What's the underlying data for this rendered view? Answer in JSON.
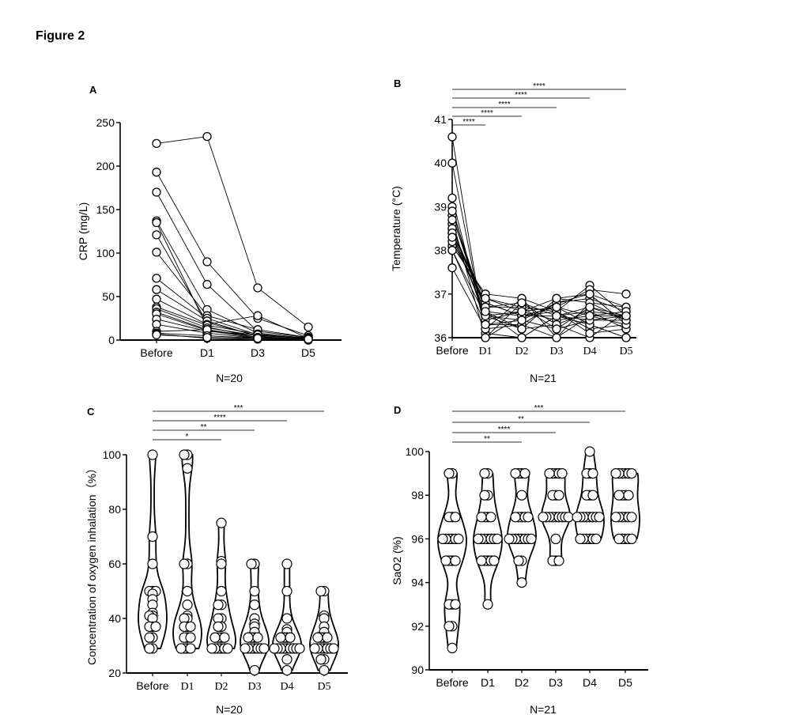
{
  "figure_title": "Figure 2",
  "chart_data": [
    {
      "panel": "A",
      "type": "line",
      "ylabel": "CRP (mg/L)",
      "xlabel": "N=20",
      "categories": [
        "Before",
        "D1",
        "D3",
        "D5"
      ],
      "ylim": [
        0,
        250
      ],
      "yticks": [
        0,
        50,
        100,
        150,
        200,
        250
      ],
      "significance": [],
      "subjects": [
        [
          226,
          234,
          60,
          15
        ],
        [
          193,
          90,
          25,
          5
        ],
        [
          170,
          64,
          10,
          3
        ],
        [
          137,
          35,
          8,
          2
        ],
        [
          135,
          15,
          3,
          1
        ],
        [
          121,
          20,
          5,
          2
        ],
        [
          101,
          28,
          12,
          3
        ],
        [
          71,
          25,
          6,
          2
        ],
        [
          58,
          22,
          4,
          1
        ],
        [
          47,
          18,
          28,
          2
        ],
        [
          38,
          17,
          7,
          1
        ],
        [
          36,
          14,
          5,
          3
        ],
        [
          32,
          12,
          3,
          1
        ],
        [
          30,
          11,
          2,
          0
        ],
        [
          24,
          10,
          6,
          2
        ],
        [
          18,
          8,
          2,
          1
        ],
        [
          10,
          12,
          3,
          1
        ],
        [
          8,
          5,
          2,
          0
        ],
        [
          7,
          2,
          1,
          0
        ],
        [
          6,
          3,
          2,
          1
        ]
      ]
    },
    {
      "panel": "B",
      "type": "line",
      "ylabel": "Temperature (°C)",
      "xlabel": "N=21",
      "categories": [
        "Before",
        "D1",
        "D2",
        "D3",
        "D4",
        "D5"
      ],
      "ylim": [
        36,
        41
      ],
      "yticks": [
        36,
        37,
        38,
        39,
        40,
        41
      ],
      "significance": [
        {
          "from": "Before",
          "to": "D5",
          "label": "****"
        },
        {
          "from": "Before",
          "to": "D4",
          "label": "****"
        },
        {
          "from": "Before",
          "to": "D3",
          "label": "****"
        },
        {
          "from": "Before",
          "to": "D2",
          "label": "****"
        },
        {
          "from": "Before",
          "to": "D1",
          "label": "****"
        }
      ],
      "subjects": [
        [
          40.6,
          36.0,
          36.5,
          36.6,
          37.2,
          36.5
        ],
        [
          40.0,
          36.1,
          36.0,
          36.5,
          36.3,
          36.0
        ],
        [
          39.2,
          36.2,
          36.9,
          36.0,
          36.5,
          36.3
        ],
        [
          39.0,
          36.3,
          36.3,
          36.8,
          37.0,
          36.7
        ],
        [
          38.8,
          36.5,
          36.6,
          36.9,
          36.8,
          36.4
        ],
        [
          38.8,
          36.6,
          36.2,
          36.3,
          36.0,
          36.6
        ],
        [
          38.5,
          36.7,
          36.8,
          36.5,
          36.6,
          36.2
        ],
        [
          38.4,
          36.8,
          36.5,
          36.7,
          37.1,
          37.0
        ],
        [
          38.4,
          36.9,
          36.7,
          36.2,
          36.4,
          36.5
        ],
        [
          38.1,
          37.0,
          36.9,
          36.6,
          36.2,
          36.3
        ],
        [
          38.0,
          36.5,
          36.4,
          36.8,
          36.9,
          36.6
        ],
        [
          38.3,
          36.6,
          36.0,
          36.5,
          36.7,
          36.4
        ],
        [
          38.6,
          36.4,
          36.6,
          36.4,
          36.5,
          36.5
        ],
        [
          38.2,
          36.8,
          36.5,
          36.7,
          36.3,
          36.0
        ],
        [
          37.6,
          36.2,
          36.3,
          36.0,
          36.8,
          36.7
        ],
        [
          38.5,
          36.7,
          36.7,
          36.6,
          36.1,
          36.2
        ],
        [
          38.7,
          36.0,
          36.8,
          36.3,
          36.6,
          36.5
        ],
        [
          38.4,
          36.5,
          36.2,
          36.9,
          37.0,
          36.3
        ],
        [
          38.9,
          36.6,
          36.5,
          36.5,
          36.4,
          36.4
        ],
        [
          38.3,
          36.9,
          36.6,
          36.7,
          36.5,
          36.6
        ],
        [
          38.0,
          36.3,
          36.4,
          36.2,
          36.7,
          36.5
        ]
      ]
    },
    {
      "panel": "C",
      "type": "violin",
      "ylabel": "Concentration of oxygen inhalation（%）",
      "xlabel": "N=20",
      "categories": [
        "Before",
        "D1",
        "D2",
        "D3",
        "D4",
        "D5"
      ],
      "ylim": [
        20,
        100
      ],
      "yticks": [
        20,
        40,
        60,
        80,
        100
      ],
      "significance": [
        {
          "from": "Before",
          "to": "D5",
          "label": "***"
        },
        {
          "from": "Before",
          "to": "D4",
          "label": "****"
        },
        {
          "from": "Before",
          "to": "D3",
          "label": "**"
        },
        {
          "from": "Before",
          "to": "D2",
          "label": "*"
        }
      ],
      "groups": [
        [
          100,
          70,
          60,
          50,
          50,
          50,
          49,
          47,
          45,
          42,
          41,
          41,
          40,
          37,
          37,
          37,
          33,
          33,
          29,
          29
        ],
        [
          100,
          100,
          95,
          60,
          60,
          50,
          45,
          41,
          40,
          40,
          37,
          37,
          37,
          33,
          33,
          33,
          29,
          29,
          29,
          29
        ],
        [
          75,
          61,
          60,
          50,
          45,
          45,
          40,
          40,
          37,
          37,
          33,
          33,
          33,
          33,
          29,
          29,
          29,
          29,
          29,
          29
        ],
        [
          60,
          60,
          50,
          45,
          40,
          38,
          37,
          35,
          33,
          33,
          33,
          33,
          29,
          29,
          29,
          29,
          29,
          29,
          29,
          21
        ],
        [
          60,
          50,
          40,
          36,
          35,
          33,
          33,
          33,
          33,
          29,
          29,
          29,
          29,
          29,
          29,
          29,
          29,
          25,
          21,
          29
        ],
        [
          50,
          50,
          41,
          40,
          37,
          35,
          33,
          33,
          33,
          33,
          29,
          29,
          29,
          29,
          29,
          29,
          29,
          25,
          25,
          21
        ]
      ]
    },
    {
      "panel": "D",
      "type": "violin",
      "ylabel": "SaO2 (%)",
      "xlabel": "N=21",
      "categories": [
        "Before",
        "D1",
        "D2",
        "D3",
        "D4",
        "D5"
      ],
      "ylim": [
        90,
        100
      ],
      "yticks": [
        90,
        92,
        94,
        96,
        98,
        100
      ],
      "significance": [
        {
          "from": "Before",
          "to": "D5",
          "label": "***"
        },
        {
          "from": "Before",
          "to": "D4",
          "label": "**"
        },
        {
          "from": "Before",
          "to": "D3",
          "label": "****"
        },
        {
          "from": "Before",
          "to": "D2",
          "label": "**"
        }
      ],
      "groups": [
        [
          99,
          99,
          97,
          97,
          96,
          96,
          96,
          96,
          96,
          95,
          95,
          95,
          93,
          93,
          93,
          92,
          92,
          91,
          96,
          95,
          97
        ],
        [
          99,
          99,
          98,
          98,
          97,
          97,
          97,
          96,
          96,
          96,
          96,
          96,
          96,
          95,
          95,
          95,
          95,
          95,
          93,
          96,
          97
        ],
        [
          99,
          99,
          99,
          98,
          97,
          97,
          97,
          96,
          96,
          96,
          96,
          96,
          96,
          95,
          95,
          94,
          97,
          96,
          99,
          96,
          97
        ],
        [
          99,
          99,
          99,
          99,
          98,
          98,
          97,
          97,
          97,
          97,
          97,
          97,
          97,
          96,
          95,
          95,
          95,
          97,
          98,
          99,
          97
        ],
        [
          100,
          99,
          99,
          98,
          98,
          97,
          97,
          97,
          97,
          97,
          97,
          96,
          96,
          96,
          96,
          96,
          96,
          97,
          98,
          99,
          97
        ],
        [
          99,
          99,
          99,
          99,
          99,
          98,
          98,
          98,
          97,
          97,
          97,
          97,
          97,
          96,
          96,
          96,
          96,
          96,
          98,
          99,
          97
        ]
      ]
    }
  ]
}
